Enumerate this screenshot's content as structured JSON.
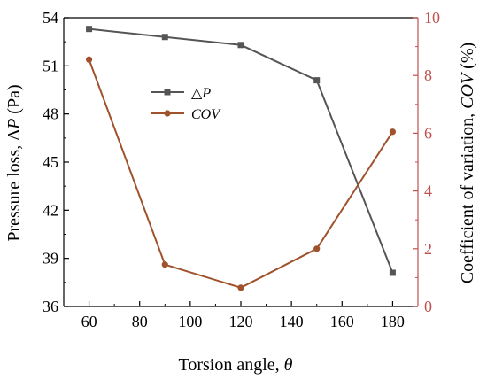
{
  "chart_data": {
    "type": "line",
    "x": [
      60,
      90,
      120,
      150,
      180
    ],
    "xlim": [
      50,
      190
    ],
    "xticks": [
      "60",
      "80",
      "100",
      "120",
      "140",
      "160",
      "180"
    ],
    "xlabel": {
      "text": "Torsion angle, ",
      "symbol": "θ"
    },
    "left_axis": {
      "label": {
        "text": "Pressure loss, Δ",
        "symbol": "P",
        "unit": " (Pa)"
      },
      "ylim": [
        36,
        54
      ],
      "ticks": [
        "36",
        "39",
        "42",
        "45",
        "48",
        "51",
        "54"
      ],
      "color": "#000000"
    },
    "right_axis": {
      "label": {
        "text": "Coefficient of variation, ",
        "symbol": "COV",
        "unit": " (%)"
      },
      "ylim": [
        0,
        10
      ],
      "ticks": [
        "0",
        "2",
        "4",
        "6",
        "8",
        "10"
      ],
      "color": "#c0504d"
    },
    "series": [
      {
        "name": "△P",
        "name_prefix": "△",
        "name_symbol": "P",
        "axis": "left",
        "color": "#555555",
        "marker": "square",
        "values": [
          53.3,
          52.8,
          52.3,
          50.1,
          38.1
        ]
      },
      {
        "name": "COV",
        "name_prefix": "",
        "name_symbol": "COV",
        "axis": "right",
        "color": "#a0522d",
        "marker": "circle",
        "values": [
          8.55,
          1.45,
          0.65,
          2.0,
          6.05
        ]
      }
    ],
    "legend_position": "upper-center",
    "grid": false
  }
}
